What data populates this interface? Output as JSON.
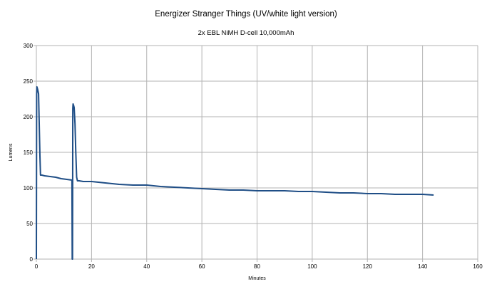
{
  "chart_data": {
    "type": "line",
    "title": "Energizer Stranger Things (UV/white light version)",
    "subtitle": "2x EBL NiMH D-cell 10,000mAh",
    "xlabel": "Minutes",
    "ylabel": "Lumens",
    "xlim": [
      0,
      160
    ],
    "ylim": [
      0,
      300
    ],
    "xticks": [
      0,
      20,
      40,
      60,
      80,
      100,
      120,
      140,
      160
    ],
    "yticks": [
      0,
      50,
      100,
      150,
      200,
      250,
      300
    ],
    "grid": true,
    "legend": "none",
    "series": [
      {
        "color": "#1f4e86",
        "x": [
          0,
          0.1,
          0.2,
          0.5,
          0.8,
          1.0,
          1.3,
          1.5,
          2,
          3,
          5,
          7,
          9,
          11,
          12.9,
          13.0,
          13.1,
          13.2,
          13.3,
          13.5,
          13.7,
          14.0,
          14.3,
          14.6,
          14.9,
          15.5,
          17,
          20,
          25,
          30,
          35,
          40,
          45,
          50,
          55,
          60,
          65,
          70,
          75,
          80,
          85,
          90,
          95,
          100,
          105,
          110,
          115,
          120,
          125,
          130,
          135,
          140,
          144
        ],
        "y": [
          0,
          232,
          242,
          238,
          232,
          195,
          145,
          118,
          118,
          117,
          116,
          115,
          113,
          112,
          111,
          0,
          0,
          212,
          218,
          216,
          213,
          190,
          150,
          115,
          110,
          110,
          109,
          109,
          107,
          105,
          104,
          104,
          102,
          101,
          100,
          99,
          98,
          97,
          97,
          96,
          96,
          96,
          95,
          95,
          94,
          93,
          93,
          92,
          92,
          91,
          91,
          91,
          90
        ]
      }
    ]
  }
}
